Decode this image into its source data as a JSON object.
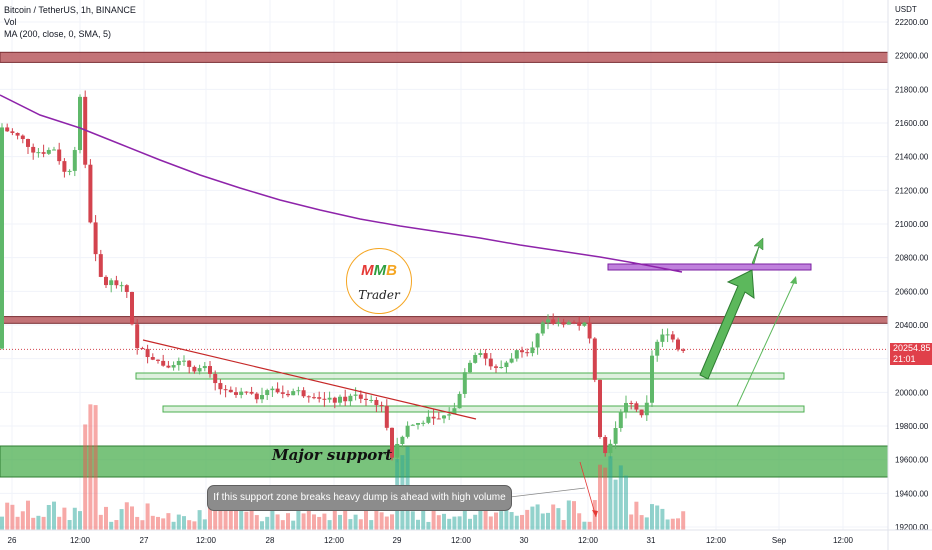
{
  "header": {
    "symbol_line": "Bitcoin / TetherUS, 1h, BINANCE",
    "vol_label": "Vol",
    "ma_label": "MA (200, close, 0, SMA, 5)"
  },
  "price_axis": {
    "currency": "USDT",
    "ticks": [
      "22200.00",
      "22000.00",
      "21800.00",
      "21600.00",
      "21400.00",
      "21200.00",
      "21000.00",
      "20800.00",
      "20600.00",
      "20400.00",
      "20200.00",
      "20000.00",
      "19800.00",
      "19600.00",
      "19400.00",
      "19200.00"
    ]
  },
  "current_price": {
    "value": "20254.85",
    "countdown": "21:01",
    "color": "#e0404a"
  },
  "time_axis": {
    "labels": [
      "26",
      "12:00",
      "27",
      "12:00",
      "28",
      "12:00",
      "29",
      "12:00",
      "30",
      "12:00",
      "31",
      "12:00",
      "Sep",
      "12:00"
    ]
  },
  "annotations": {
    "major_support": "Major support",
    "warning": "If this support zone breaks heavy dump is ahead with high volume"
  },
  "logo": {
    "letters": [
      "M",
      "M",
      "B"
    ],
    "letter_colors": [
      "#e53935",
      "#2e9e3e",
      "#f5a623"
    ],
    "subtitle": "Trader"
  },
  "colors": {
    "up": "#26a69a",
    "up_body": "#5fb86a",
    "down": "#d3434e",
    "ma": "#8e24aa",
    "resistance_zone": "#b85a5f",
    "support_zone": "#4caf50",
    "target_zone": "#b46ad6"
  },
  "chart_data": {
    "type": "candlestick",
    "symbol": "BTC/USDT",
    "timeframe": "1h",
    "exchange": "BINANCE",
    "y_range": [
      19150,
      22250
    ],
    "ma_200": [
      {
        "x": "26 00:00",
        "y": 21790
      },
      {
        "x": "26 12:00",
        "y": 21690
      },
      {
        "x": "27 00:00",
        "y": 21560
      },
      {
        "x": "27 12:00",
        "y": 21320
      },
      {
        "x": "28 00:00",
        "y": 21240
      },
      {
        "x": "28 12:00",
        "y": 21160
      },
      {
        "x": "29 00:00",
        "y": 21070
      },
      {
        "x": "29 12:00",
        "y": 20990
      },
      {
        "x": "30 00:00",
        "y": 20910
      },
      {
        "x": "30 12:00",
        "y": 20830
      },
      {
        "x": "31 00:00",
        "y": 20770
      },
      {
        "x": "31 06:00",
        "y": 20720
      }
    ],
    "zones": [
      {
        "name": "upper resistance",
        "from": 21960,
        "to": 22020
      },
      {
        "name": "resistance",
        "from": 20410,
        "to": 20450
      },
      {
        "name": "support 1",
        "from": 20080,
        "to": 20100
      },
      {
        "name": "support 2",
        "from": 19910,
        "to": 19930
      },
      {
        "name": "major support",
        "from": 19510,
        "to": 19700
      },
      {
        "name": "target",
        "from": 20730,
        "to": 20750
      }
    ],
    "key_prices": {
      "open_start": 21650,
      "low": 19550,
      "last": 20254.85
    }
  }
}
